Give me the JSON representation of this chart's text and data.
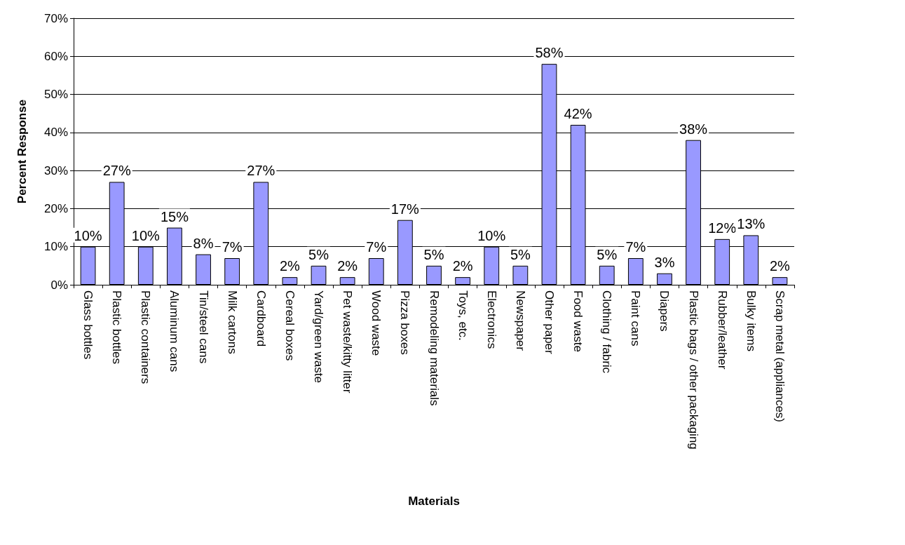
{
  "chart_data": {
    "type": "bar",
    "xlabel": "Materials",
    "ylabel": "Percent Response",
    "categories": [
      "Glass bottles",
      "Plastic bottles",
      "Plastic containers",
      "Aluminum cans",
      "Tin/steel cans",
      "Milk cartons",
      "Cardboard",
      "Cereal boxes",
      "Yard/green waste",
      "Pet waste/kitty litter",
      "Wood waste",
      "Pizza boxes",
      "Remodeling materials",
      "Toys, etc.",
      "Electronics",
      "Newspaper",
      "Other paper",
      "Food waste",
      "Clothing / fabric",
      "Paint cans",
      "Diapers",
      "Plastic bags / other packaging",
      "Rubber/leather",
      "Bulky items",
      "Scrap metal (appliances)"
    ],
    "values": [
      10,
      27,
      10,
      15,
      8,
      7,
      27,
      2,
      5,
      2,
      7,
      17,
      5,
      2,
      10,
      5,
      58,
      42,
      5,
      7,
      3,
      38,
      12,
      13,
      2
    ],
    "value_labels": [
      "10%",
      "27%",
      "10%",
      "15%",
      "8%",
      "7%",
      "27%",
      "2%",
      "5%",
      "2%",
      "7%",
      "17%",
      "5%",
      "2%",
      "10%",
      "5%",
      "58%",
      "42%",
      "5%",
      "7%",
      "3%",
      "38%",
      "12%",
      "13%",
      "2%"
    ],
    "color": "#9999ff",
    "ylim": [
      0,
      70
    ],
    "yticks": [
      {
        "value": 0,
        "label": "0%"
      },
      {
        "value": 10,
        "label": "10%"
      },
      {
        "value": 20,
        "label": "20%"
      },
      {
        "value": 30,
        "label": "30%"
      },
      {
        "value": 40,
        "label": "40%"
      },
      {
        "value": 50,
        "label": "50%"
      },
      {
        "value": 60,
        "label": "60%"
      },
      {
        "value": 70,
        "label": "70%"
      }
    ],
    "grid": "y"
  }
}
